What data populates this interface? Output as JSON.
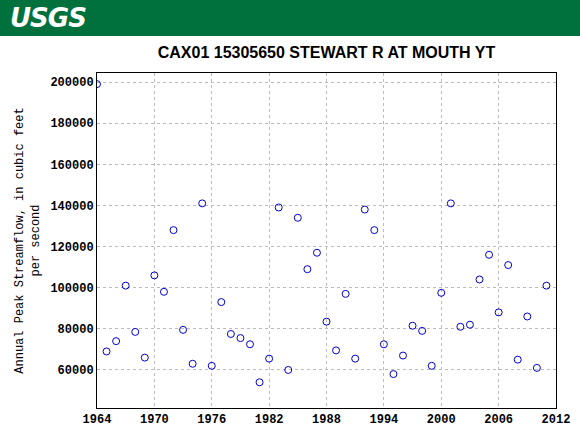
{
  "header": {
    "logo": "USGS"
  },
  "chart_data": {
    "type": "scatter",
    "title": "CAX01 15305650 STEWART R AT MOUTH YT",
    "y_label": [
      "Annual Peak Streamflow, in cubic feet",
      "per second"
    ],
    "x": [
      1964,
      1965,
      1966,
      1967,
      1968,
      1969,
      1970,
      1971,
      1972,
      1973,
      1974,
      1975,
      1976,
      1977,
      1978,
      1979,
      1980,
      1981,
      1982,
      1983,
      1984,
      1985,
      1986,
      1987,
      1988,
      1989,
      1990,
      1991,
      1992,
      1993,
      1994,
      1995,
      1996,
      1997,
      1998,
      1999,
      2000,
      2001,
      2002,
      2003,
      2004,
      2005,
      2006,
      2007,
      2008,
      2009,
      2010,
      2011
    ],
    "values": [
      199000,
      69000,
      74000,
      101000,
      78500,
      66000,
      106000,
      98000,
      128000,
      79500,
      63000,
      141000,
      62000,
      93000,
      77500,
      75500,
      72500,
      54000,
      65500,
      139000,
      60000,
      134000,
      109000,
      117000,
      83500,
      69500,
      97000,
      65500,
      138000,
      128000,
      72500,
      58000,
      67000,
      81500,
      79000,
      62000,
      97500,
      141000,
      81000,
      82000,
      104000,
      116000,
      88000,
      111000,
      65000,
      86000,
      61000,
      101000
    ],
    "color": "#0000cc",
    "marker": "open_circle",
    "xlim": [
      1964,
      2012
    ],
    "xticks": [
      1964,
      1970,
      1976,
      1982,
      1988,
      1994,
      2000,
      2006,
      2012
    ],
    "ylim": [
      41500,
      204400
    ],
    "yticks": [
      60000,
      80000,
      100000,
      120000,
      140000,
      160000,
      180000,
      200000
    ],
    "grid": true
  }
}
